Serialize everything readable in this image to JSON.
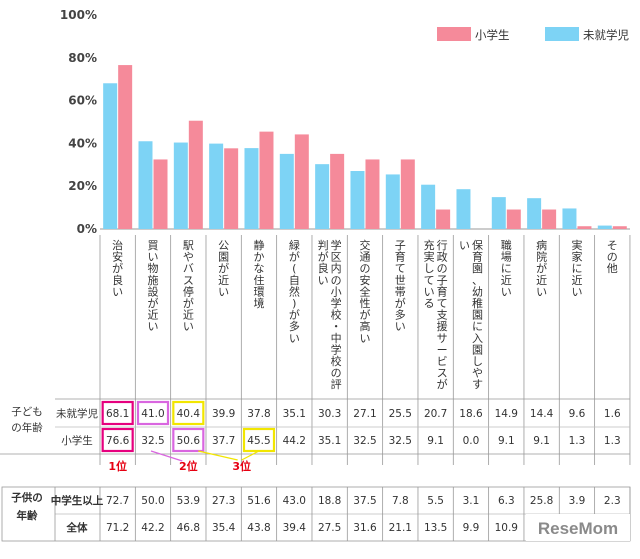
{
  "chart_data": {
    "type": "bar",
    "ylim": [
      0,
      100
    ],
    "yticks": [
      "0%",
      "20%",
      "40%",
      "60%",
      "80%",
      "100%"
    ],
    "categories": [
      "治安が良い",
      "買い物施設が近い",
      "駅やバス停が近い",
      "公園が近い",
      "静かな住環境",
      "緑が(自然)が多い",
      "学区内の小学校・中学校の評判が良い",
      "交通の安全性が高い",
      "子育て世帯が多い",
      "行政の子育て支援サービスが充実している",
      "保育園、幼稚園に入園しやすい",
      "職場に近い",
      "病院が近い",
      "実家に近い",
      "その他"
    ],
    "series": [
      {
        "name": "小学生",
        "color": "#f58a9a",
        "values": [
          76.6,
          32.5,
          50.6,
          37.7,
          45.5,
          44.2,
          35.1,
          32.5,
          32.5,
          9.1,
          0.0,
          9.1,
          9.1,
          1.3,
          1.3
        ]
      },
      {
        "name": "未就学児",
        "color": "#7dd3f5",
        "values": [
          68.1,
          41.0,
          40.4,
          39.9,
          37.8,
          35.1,
          30.3,
          27.1,
          25.5,
          20.7,
          18.6,
          14.9,
          14.4,
          9.6,
          1.6
        ]
      }
    ],
    "legend_position": "top-right"
  },
  "table1": {
    "group_label": "子どもの年齢",
    "rows": [
      {
        "label": "未就学児",
        "values": [
          "68.1",
          "41.0",
          "40.4",
          "39.9",
          "37.8",
          "35.1",
          "30.3",
          "27.1",
          "25.5",
          "20.7",
          "18.6",
          "14.9",
          "14.4",
          "9.6",
          "1.6"
        ]
      },
      {
        "label": "小学生",
        "values": [
          "76.6",
          "32.5",
          "50.6",
          "37.7",
          "45.5",
          "44.2",
          "35.1",
          "32.5",
          "32.5",
          "9.1",
          "0.0",
          "9.1",
          "9.1",
          "1.3",
          "1.3"
        ]
      }
    ],
    "ranks": [
      "1位",
      "2位",
      "3位"
    ],
    "highlight_colors": {
      "rank1": "#e6007e",
      "rank2": "#d966e0",
      "rank3": "#f2e600"
    }
  },
  "table2": {
    "group_label": "子供の年齢",
    "rows": [
      {
        "label": "中学生以上",
        "values": [
          "72.7",
          "50.0",
          "53.9",
          "27.3",
          "51.6",
          "43.0",
          "18.8",
          "37.5",
          "7.8",
          "5.5",
          "3.1",
          "6.3",
          "25.8",
          "3.9",
          "2.3"
        ]
      },
      {
        "label": "全体",
        "values": [
          "71.2",
          "42.2",
          "46.8",
          "35.4",
          "43.8",
          "39.4",
          "27.5",
          "31.6",
          "21.1",
          "13.5",
          "9.9",
          "10.9",
          "",
          "",
          ""
        ]
      }
    ]
  },
  "watermark": "ReseMom"
}
